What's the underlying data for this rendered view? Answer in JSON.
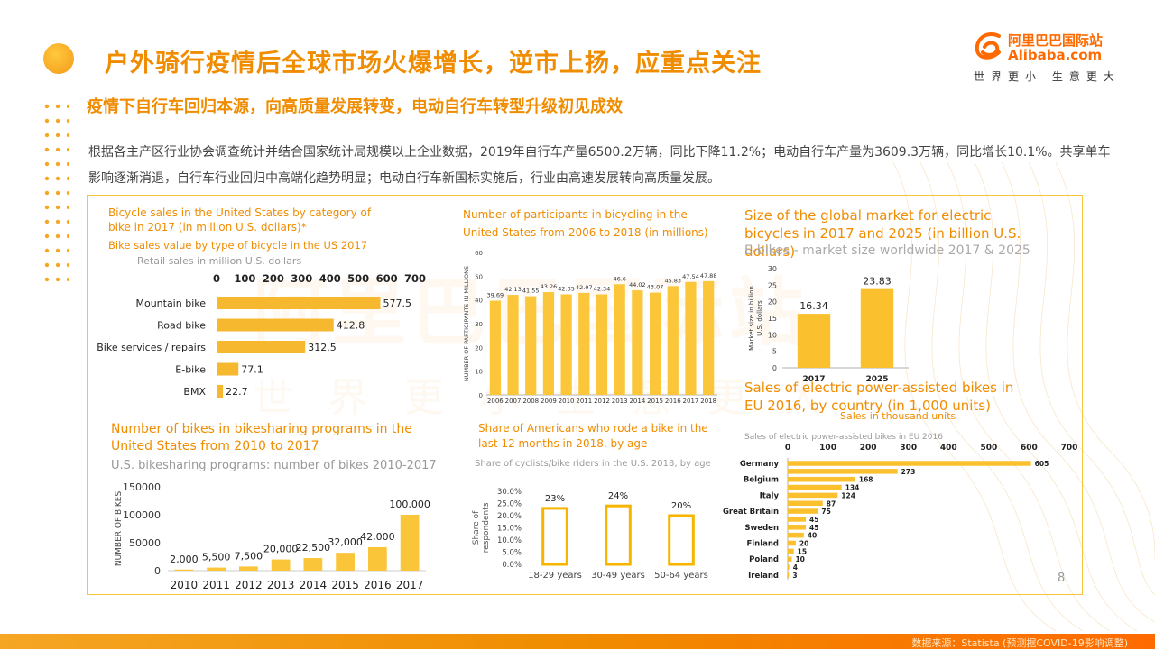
{
  "header": {
    "title": "户外骑行疫情后全球市场火爆增长，逆市上扬，应重点关注",
    "subtitle": "疫情下自行车回归本源，向高质量发展转变，电动自行车转型升级初见成效"
  },
  "logo": {
    "name_cn": "阿里巴巴国际站",
    "name_en": "Alibaba.com",
    "slogan": "世界更小 生意更大"
  },
  "intro": "根据各主产区行业协会调查统计并结合国家统计局规模以上企业数据，2019年自行车产量6500.2万辆，同比下降11.2%；电动自行车产量为3609.3万辆，同比增长10.1%。共享单车影响逐渐消退，自行车行业回归中高端化趋势明显；电动自行车新国标实施后，行业由高速发展转向高质量发展。",
  "watermark": {
    "line1": "阿里巴巴国际站",
    "line2": "世界更小生意更大"
  },
  "footer": {
    "source": "数据来源：Statista (预测据COVID-19影响调整)",
    "page": "8"
  },
  "colors": {
    "accent": "#f08c00",
    "bar": "#f5b82e",
    "bar_light": "#fbc63a",
    "frame": "#f7c23c"
  },
  "chart_data": [
    {
      "id": "bike-sales-category",
      "type": "bar",
      "orientation": "horizontal",
      "title": "Bicycle sales in the United States by category of bike in 2017 (in million U.S. dollars)*",
      "subtitle": "Bike sales value by type of bicycle in the US 2017",
      "xlabel": "Retail sales in million U.S. dollars",
      "categories": [
        "Mountain bike",
        "Road bike",
        "Bike services / repairs",
        "E-bike",
        "BMX"
      ],
      "values": [
        577.5,
        412.8,
        312.5,
        77.1,
        22.7
      ],
      "labels": [
        "577.5",
        "412.8",
        "312.5",
        "77.1",
        "22.7"
      ],
      "xlim": [
        0,
        700
      ],
      "ticks": [
        "0",
        "100",
        "200",
        "300",
        "400",
        "500",
        "600",
        "700"
      ]
    },
    {
      "id": "participants",
      "type": "bar",
      "title": "Number of participants in bicycling in the United States from 2006 to 2018 (in millions)",
      "ylabel": "NUMBER OF PARTICIPANTS IN MILLIONS",
      "categories": [
        "2006",
        "2007",
        "2008",
        "2009",
        "2010",
        "2011",
        "2012",
        "2013",
        "2014",
        "2015",
        "2016",
        "2017",
        "2018"
      ],
      "values": [
        39.69,
        42.13,
        41.55,
        43.26,
        42.35,
        42.97,
        42.34,
        46.6,
        44.02,
        43.07,
        45.83,
        47.54,
        47.88
      ],
      "labels": [
        "39.69",
        "42.13",
        "41.55",
        "43.26",
        "42.35",
        "42.97",
        "42.34",
        "46.6",
        "44.02",
        "43.07",
        "45.83",
        "47.54",
        "47.88"
      ],
      "ylim": [
        0,
        60
      ],
      "ticks": [
        "0",
        "10",
        "20",
        "30",
        "40",
        "50",
        "60"
      ]
    },
    {
      "id": "ebike-market",
      "type": "bar",
      "title": "Size of the global market for electric bicycles in 2017 and 2025 (in billion U.S. dollars)",
      "subtitle": "E-bikes - market size worldwide 2017 & 2025",
      "ylabel": "Market size in billion U.S. dollars",
      "categories": [
        "2017",
        "2025"
      ],
      "values": [
        16.34,
        23.83
      ],
      "labels": [
        "16.34",
        "23.83"
      ],
      "ylim": [
        0,
        30
      ],
      "ticks": [
        "0",
        "5",
        "10",
        "15",
        "20",
        "25",
        "30"
      ]
    },
    {
      "id": "bikesharing",
      "type": "bar",
      "title": "Number of bikes in bikesharing programs in the United States from 2010 to 2017",
      "subtitle": "U.S. bikesharing programs: number of bikes 2010-2017",
      "ylabel": "NUMBER OF BIKES",
      "categories": [
        "2010",
        "2011",
        "2012",
        "2013",
        "2014",
        "2015",
        "2016",
        "2017"
      ],
      "values": [
        2000,
        5500,
        7500,
        20000,
        22500,
        32000,
        42000,
        100000
      ],
      "labels": [
        "2,000",
        "5,500",
        "7,500",
        "20,000",
        "22,500",
        "32,000",
        "42,000",
        "100,000"
      ],
      "ylim": [
        0,
        150000
      ],
      "ticks": [
        "0",
        "50000",
        "100000",
        "150000"
      ]
    },
    {
      "id": "rode-bike-share",
      "type": "bar",
      "title": "Share of Americans who rode a bike in the last 12 months in 2018, by age",
      "subtitle": "Share of cyclists/bike riders in the U.S. 2018, by age",
      "ylabel": "Share of respondents",
      "categories": [
        "18-29 years",
        "30-49 years",
        "50-64 years"
      ],
      "values": [
        23,
        24,
        20
      ],
      "labels": [
        "23%",
        "24%",
        "20%"
      ],
      "ylim": [
        0,
        30
      ],
      "ticks": [
        "0.0%",
        "5.0%",
        "10.0%",
        "15.0%",
        "20.0%",
        "25.0%",
        "30.0%"
      ]
    },
    {
      "id": "eu-ebikes",
      "type": "bar",
      "orientation": "horizontal",
      "title": "Sales of electric power-assisted bikes in EU 2016, by country (in 1,000 units)",
      "subtitle": "Sales in thousand units",
      "note": "Sales of electric power-assisted bikes in EU 2016",
      "categories": [
        "Germany",
        "",
        "Belgium",
        "",
        "Italy",
        "",
        "Great Britain",
        "",
        "Sweden",
        "",
        "Finland",
        "",
        "Poland",
        "",
        "Ireland"
      ],
      "values": [
        605,
        273,
        168,
        134,
        124,
        87,
        75,
        45,
        45,
        40,
        20,
        15,
        10,
        4,
        3
      ],
      "labels": [
        "605",
        "273",
        "168",
        "134",
        "124",
        "87",
        "75",
        "45",
        "45",
        "40",
        "20",
        "15",
        "10",
        "4",
        "3"
      ],
      "xlim": [
        0,
        700
      ],
      "ticks": [
        "0",
        "100",
        "200",
        "300",
        "400",
        "500",
        "600",
        "700"
      ]
    }
  ]
}
